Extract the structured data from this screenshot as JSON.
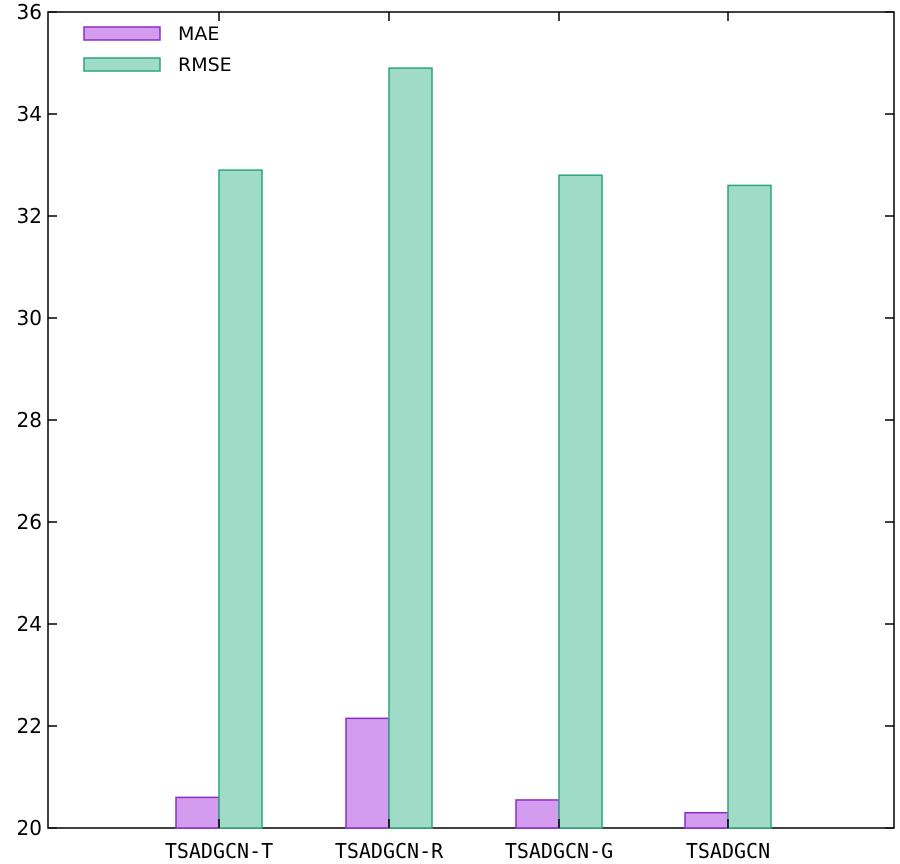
{
  "chart_data": {
    "type": "bar",
    "title": "",
    "xlabel": "",
    "ylabel": "",
    "categories": [
      "TSADGCN-T",
      "TSADGCN-R",
      "TSADGCN-G",
      "TSADGCN"
    ],
    "series": [
      {
        "name": "MAE",
        "values": [
          20.6,
          22.15,
          20.55,
          20.3
        ],
        "fill": "#d49cef",
        "stroke": "#8e2bc8"
      },
      {
        "name": "RMSE",
        "values": [
          32.9,
          34.9,
          32.8,
          32.6
        ],
        "fill": "#9fdbc7",
        "stroke": "#2aa57a"
      }
    ],
    "ylim": [
      20,
      36
    ],
    "yticks": [
      20,
      22,
      24,
      26,
      28,
      30,
      32,
      34,
      36
    ],
    "grid": false,
    "legend_position": "top-left"
  }
}
